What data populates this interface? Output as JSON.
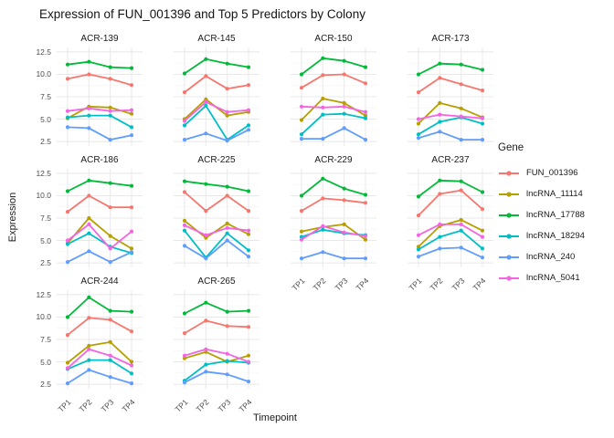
{
  "title": "Expression of FUN_001396 and Top 5 Predictors by Colony",
  "legend": {
    "title": "Gene"
  },
  "chart_data": {
    "type": "line",
    "title": "Expression of FUN_001396 and Top 5 Predictors by Colony",
    "xlabel": "Timepoint",
    "ylabel": "Expression",
    "categories": [
      "TP1",
      "TP2",
      "TP3",
      "TP4"
    ],
    "yticks": [
      2.5,
      5.0,
      7.5,
      10.0,
      12.5
    ],
    "yminor": [
      3.75,
      6.25,
      8.75,
      11.25
    ],
    "ylim": [
      2.0,
      13.0
    ],
    "grid": true,
    "legend_title": "Gene",
    "legend_position": "right",
    "facet_layout": {
      "columns": 4
    },
    "series": [
      {
        "name": "FUN_001396",
        "color": "#F8766D"
      },
      {
        "name": "lncRNA_11114",
        "color": "#B79F00"
      },
      {
        "name": "lncRNA_17788",
        "color": "#00BA38"
      },
      {
        "name": "lncRNA_18294",
        "color": "#00BFC4"
      },
      {
        "name": "lncRNA_240",
        "color": "#619CFF"
      },
      {
        "name": "lncRNA_5041",
        "color": "#F564E3"
      }
    ],
    "facets": [
      {
        "name": "ACR-139",
        "values": {
          "FUN_001396": [
            9.5,
            10.0,
            9.5,
            8.8
          ],
          "lncRNA_11114": [
            5.1,
            6.4,
            6.3,
            5.6
          ],
          "lncRNA_17788": [
            11.1,
            11.4,
            10.8,
            10.7
          ],
          "lncRNA_18294": [
            5.2,
            5.4,
            5.4,
            4.1
          ],
          "lncRNA_240": [
            4.1,
            4.0,
            2.7,
            3.2
          ],
          "lncRNA_5041": [
            5.9,
            6.2,
            5.9,
            6.0
          ]
        }
      },
      {
        "name": "ACR-145",
        "values": {
          "FUN_001396": [
            8.0,
            9.8,
            8.4,
            8.8
          ],
          "lncRNA_11114": [
            5.0,
            7.2,
            5.4,
            5.8
          ],
          "lncRNA_17788": [
            10.1,
            11.7,
            11.2,
            10.8
          ],
          "lncRNA_18294": [
            4.3,
            6.5,
            2.7,
            4.3
          ],
          "lncRNA_240": [
            2.7,
            3.4,
            2.6,
            3.8
          ],
          "lncRNA_5041": [
            4.8,
            6.9,
            5.8,
            6.0
          ]
        }
      },
      {
        "name": "ACR-150",
        "values": {
          "FUN_001396": [
            8.5,
            9.9,
            10.0,
            9.0
          ],
          "lncRNA_11114": [
            4.9,
            7.3,
            6.8,
            5.4
          ],
          "lncRNA_17788": [
            10.0,
            11.8,
            11.5,
            10.8
          ],
          "lncRNA_18294": [
            3.3,
            5.5,
            5.6,
            5.1
          ],
          "lncRNA_240": [
            2.8,
            2.8,
            4.0,
            2.7
          ],
          "lncRNA_5041": [
            6.4,
            6.3,
            6.4,
            5.8
          ]
        }
      },
      {
        "name": "ACR-173",
        "values": {
          "FUN_001396": [
            8.0,
            9.6,
            8.9,
            8.2
          ],
          "lncRNA_11114": [
            4.5,
            6.8,
            6.2,
            5.2
          ],
          "lncRNA_17788": [
            10.0,
            11.2,
            11.1,
            10.5
          ],
          "lncRNA_18294": [
            3.3,
            4.7,
            5.2,
            4.5
          ],
          "lncRNA_240": [
            2.9,
            3.6,
            2.7,
            2.7
          ],
          "lncRNA_5041": [
            5.0,
            5.5,
            5.3,
            5.1
          ]
        }
      },
      {
        "name": "ACR-186",
        "values": {
          "FUN_001396": [
            8.2,
            10.0,
            8.7,
            8.7
          ],
          "lncRNA_11114": [
            4.7,
            7.5,
            5.5,
            4.1
          ],
          "lncRNA_17788": [
            10.5,
            11.7,
            11.4,
            11.1
          ],
          "lncRNA_18294": [
            4.6,
            5.8,
            4.3,
            3.6
          ],
          "lncRNA_240": [
            2.6,
            3.8,
            2.6,
            3.7
          ],
          "lncRNA_5041": [
            5.0,
            6.8,
            4.1,
            6.0
          ]
        }
      },
      {
        "name": "ACR-225",
        "values": {
          "FUN_001396": [
            10.4,
            8.3,
            10.0,
            8.3
          ],
          "lncRNA_11114": [
            7.2,
            5.3,
            6.9,
            5.7
          ],
          "lncRNA_17788": [
            11.6,
            11.3,
            11.0,
            10.5
          ],
          "lncRNA_18294": [
            6.1,
            3.1,
            5.8,
            3.9
          ],
          "lncRNA_240": [
            4.4,
            3.0,
            5.0,
            3.2
          ],
          "lncRNA_5041": [
            6.7,
            5.6,
            6.4,
            6.1
          ]
        }
      },
      {
        "name": "ACR-229",
        "values": {
          "FUN_001396": [
            8.3,
            9.7,
            9.5,
            9.2
          ],
          "lncRNA_11114": [
            6.0,
            6.5,
            6.8,
            5.1
          ],
          "lncRNA_17788": [
            10.0,
            11.9,
            10.8,
            10.1
          ],
          "lncRNA_18294": [
            5.4,
            6.2,
            5.8,
            5.6
          ],
          "lncRNA_240": [
            3.0,
            3.7,
            3.0,
            3.0
          ],
          "lncRNA_5041": [
            5.1,
            6.6,
            5.9,
            5.5
          ]
        }
      },
      {
        "name": "ACR-237",
        "values": {
          "FUN_001396": [
            7.8,
            10.2,
            10.6,
            8.5
          ],
          "lncRNA_11114": [
            4.3,
            6.6,
            7.3,
            6.1
          ],
          "lncRNA_17788": [
            9.9,
            11.7,
            11.6,
            10.4
          ],
          "lncRNA_18294": [
            4.0,
            5.4,
            6.1,
            4.1
          ],
          "lncRNA_240": [
            3.2,
            4.1,
            4.2,
            3.1
          ],
          "lncRNA_5041": [
            5.6,
            6.8,
            6.8,
            5.4
          ]
        }
      },
      {
        "name": "ACR-244",
        "values": {
          "FUN_001396": [
            8.0,
            9.9,
            9.7,
            8.4
          ],
          "lncRNA_11114": [
            4.9,
            6.8,
            7.2,
            5.0
          ],
          "lncRNA_17788": [
            10.0,
            12.2,
            10.7,
            10.6
          ],
          "lncRNA_18294": [
            4.2,
            5.2,
            5.2,
            3.7
          ],
          "lncRNA_240": [
            2.6,
            4.1,
            3.3,
            2.6
          ],
          "lncRNA_5041": [
            4.3,
            6.4,
            5.7,
            4.6
          ]
        }
      },
      {
        "name": "ACR-265",
        "values": {
          "FUN_001396": [
            8.2,
            9.6,
            9.0,
            8.9
          ],
          "lncRNA_11114": [
            5.4,
            6.1,
            5.0,
            5.7
          ],
          "lncRNA_17788": [
            10.4,
            11.6,
            10.6,
            10.7
          ],
          "lncRNA_18294": [
            2.9,
            4.7,
            5.1,
            4.9
          ],
          "lncRNA_240": [
            2.7,
            3.9,
            3.6,
            2.8
          ],
          "lncRNA_5041": [
            5.7,
            6.4,
            5.9,
            5.0
          ]
        }
      }
    ]
  }
}
